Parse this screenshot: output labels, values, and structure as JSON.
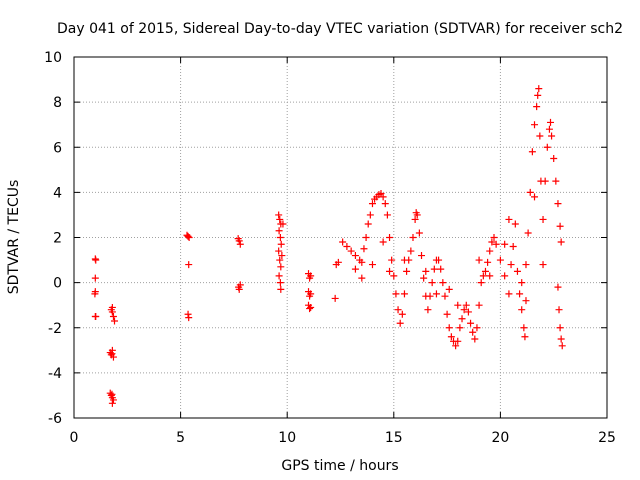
{
  "chart_data": {
    "type": "scatter",
    "title": "Day 041 of 2015, Sidereal Day-to-day VTEC variation (SDTVAR) for receiver sch2",
    "xlabel": "GPS time / hours",
    "ylabel": "SDTVAR / TECUs",
    "xlim": [
      0,
      25
    ],
    "ylim": [
      -6,
      10
    ],
    "xticks": [
      0,
      5,
      10,
      15,
      20,
      25
    ],
    "yticks": [
      -6,
      -4,
      -2,
      0,
      2,
      4,
      6,
      8,
      10
    ],
    "grid": true,
    "marker": "+",
    "color": "#ff0000",
    "series": [
      {
        "name": "SDTVAR",
        "points": [
          [
            1.0,
            1.05
          ],
          [
            1.02,
            1.0
          ],
          [
            1.0,
            0.2
          ],
          [
            1.0,
            -0.4
          ],
          [
            0.98,
            -0.5
          ],
          [
            1.0,
            -1.5
          ],
          [
            1.02,
            -1.5
          ],
          [
            1.75,
            -1.2
          ],
          [
            1.8,
            -1.3
          ],
          [
            1.85,
            -1.5
          ],
          [
            1.9,
            -1.7
          ],
          [
            1.8,
            -1.1
          ],
          [
            1.7,
            -3.1
          ],
          [
            1.75,
            -3.2
          ],
          [
            1.8,
            -3.0
          ],
          [
            1.85,
            -3.3
          ],
          [
            1.78,
            -3.15
          ],
          [
            1.7,
            -4.9
          ],
          [
            1.75,
            -5.0
          ],
          [
            1.8,
            -5.1
          ],
          [
            1.85,
            -5.2
          ],
          [
            1.8,
            -5.35
          ],
          [
            1.78,
            -4.95
          ],
          [
            5.3,
            2.1
          ],
          [
            5.35,
            2.05
          ],
          [
            5.4,
            2.0
          ],
          [
            5.38,
            0.8
          ],
          [
            5.35,
            -1.4
          ],
          [
            5.38,
            -1.55
          ],
          [
            7.7,
            1.95
          ],
          [
            7.75,
            1.85
          ],
          [
            7.8,
            1.7
          ],
          [
            7.72,
            -0.2
          ],
          [
            7.75,
            -0.3
          ],
          [
            7.8,
            -0.1
          ],
          [
            9.6,
            3.0
          ],
          [
            9.65,
            2.8
          ],
          [
            9.7,
            2.6
          ],
          [
            9.62,
            2.3
          ],
          [
            9.68,
            2.0
          ],
          [
            9.72,
            1.7
          ],
          [
            9.6,
            1.4
          ],
          [
            9.65,
            1.0
          ],
          [
            9.7,
            0.7
          ],
          [
            9.62,
            0.3
          ],
          [
            9.68,
            0.0
          ],
          [
            9.7,
            -0.3
          ],
          [
            9.75,
            1.2
          ],
          [
            9.8,
            2.6
          ],
          [
            11.0,
            0.4
          ],
          [
            11.05,
            0.2
          ],
          [
            11.1,
            0.3
          ],
          [
            11.0,
            -0.4
          ],
          [
            11.05,
            -0.6
          ],
          [
            11.1,
            -0.5
          ],
          [
            11.0,
            -1.0
          ],
          [
            11.05,
            -1.15
          ],
          [
            11.1,
            -1.1
          ],
          [
            12.25,
            -0.7
          ],
          [
            12.3,
            0.8
          ],
          [
            12.4,
            0.9
          ],
          [
            12.6,
            1.8
          ],
          [
            12.8,
            1.6
          ],
          [
            13.0,
            1.4
          ],
          [
            13.2,
            1.2
          ],
          [
            13.4,
            1.0
          ],
          [
            13.5,
            0.9
          ],
          [
            13.6,
            1.5
          ],
          [
            13.7,
            2.0
          ],
          [
            13.8,
            2.6
          ],
          [
            13.9,
            3.0
          ],
          [
            14.0,
            3.5
          ],
          [
            14.1,
            3.7
          ],
          [
            14.2,
            3.8
          ],
          [
            14.3,
            3.9
          ],
          [
            14.4,
            3.95
          ],
          [
            14.5,
            3.8
          ],
          [
            14.6,
            3.5
          ],
          [
            14.7,
            3.0
          ],
          [
            14.8,
            2.0
          ],
          [
            14.9,
            1.0
          ],
          [
            15.0,
            0.3
          ],
          [
            15.1,
            -0.5
          ],
          [
            15.2,
            -1.2
          ],
          [
            15.3,
            -1.8
          ],
          [
            15.4,
            -1.4
          ],
          [
            15.5,
            -0.5
          ],
          [
            15.6,
            0.5
          ],
          [
            15.7,
            1.0
          ],
          [
            15.8,
            1.4
          ],
          [
            15.9,
            2.0
          ],
          [
            16.0,
            2.8
          ],
          [
            16.05,
            3.1
          ],
          [
            16.1,
            3.0
          ],
          [
            16.2,
            2.2
          ],
          [
            16.3,
            1.2
          ],
          [
            16.4,
            0.2
          ],
          [
            16.5,
            -0.6
          ],
          [
            16.6,
            -1.2
          ],
          [
            16.7,
            -0.6
          ],
          [
            16.8,
            0.0
          ],
          [
            16.9,
            0.6
          ],
          [
            17.0,
            1.0
          ],
          [
            17.1,
            1.0
          ],
          [
            17.2,
            0.6
          ],
          [
            17.3,
            0.0
          ],
          [
            17.4,
            -0.6
          ],
          [
            17.5,
            -1.4
          ],
          [
            17.6,
            -2.0
          ],
          [
            17.7,
            -2.4
          ],
          [
            17.8,
            -2.6
          ],
          [
            17.9,
            -2.8
          ],
          [
            18.0,
            -2.6
          ],
          [
            18.1,
            -2.0
          ],
          [
            18.2,
            -1.6
          ],
          [
            18.3,
            -1.2
          ],
          [
            18.4,
            -1.0
          ],
          [
            18.5,
            -1.3
          ],
          [
            18.6,
            -1.8
          ],
          [
            18.7,
            -2.2
          ],
          [
            18.8,
            -2.5
          ],
          [
            18.9,
            -2.0
          ],
          [
            19.0,
            -1.0
          ],
          [
            19.1,
            0.0
          ],
          [
            19.2,
            0.3
          ],
          [
            19.3,
            0.5
          ],
          [
            19.4,
            0.9
          ],
          [
            19.5,
            1.4
          ],
          [
            19.6,
            1.8
          ],
          [
            19.7,
            2.0
          ],
          [
            19.8,
            1.7
          ],
          [
            20.0,
            1.0
          ],
          [
            20.2,
            0.3
          ],
          [
            20.4,
            -0.5
          ],
          [
            20.5,
            0.8
          ],
          [
            20.6,
            1.6
          ],
          [
            20.7,
            2.6
          ],
          [
            20.8,
            0.5
          ],
          [
            20.9,
            -0.5
          ],
          [
            21.0,
            -1.2
          ],
          [
            21.1,
            -2.0
          ],
          [
            21.15,
            -2.4
          ],
          [
            21.2,
            0.8
          ],
          [
            21.3,
            2.2
          ],
          [
            21.4,
            4.0
          ],
          [
            21.5,
            5.8
          ],
          [
            21.6,
            7.0
          ],
          [
            21.7,
            7.8
          ],
          [
            21.75,
            8.3
          ],
          [
            21.8,
            8.6
          ],
          [
            21.85,
            6.5
          ],
          [
            21.9,
            4.5
          ],
          [
            22.0,
            2.8
          ],
          [
            22.1,
            4.5
          ],
          [
            22.2,
            6.0
          ],
          [
            22.3,
            6.8
          ],
          [
            22.35,
            7.1
          ],
          [
            22.4,
            6.5
          ],
          [
            22.5,
            5.5
          ],
          [
            22.6,
            4.5
          ],
          [
            22.7,
            3.5
          ],
          [
            22.8,
            2.5
          ],
          [
            22.85,
            1.8
          ],
          [
            22.7,
            -0.2
          ],
          [
            22.75,
            -1.2
          ],
          [
            22.8,
            -2.0
          ],
          [
            22.85,
            -2.5
          ],
          [
            22.9,
            -2.8
          ],
          [
            13.2,
            0.6
          ],
          [
            13.5,
            0.2
          ],
          [
            14.0,
            0.8
          ],
          [
            14.5,
            1.8
          ],
          [
            14.8,
            0.5
          ],
          [
            15.5,
            1.0
          ],
          [
            16.5,
            0.5
          ],
          [
            17.0,
            -0.5
          ],
          [
            17.6,
            -0.3
          ],
          [
            18.0,
            -1.0
          ],
          [
            19.0,
            1.0
          ],
          [
            19.5,
            0.3
          ],
          [
            20.2,
            1.7
          ],
          [
            20.4,
            2.8
          ],
          [
            21.0,
            0.0
          ],
          [
            21.2,
            -0.8
          ],
          [
            21.6,
            3.8
          ],
          [
            22.0,
            0.8
          ]
        ]
      }
    ]
  }
}
